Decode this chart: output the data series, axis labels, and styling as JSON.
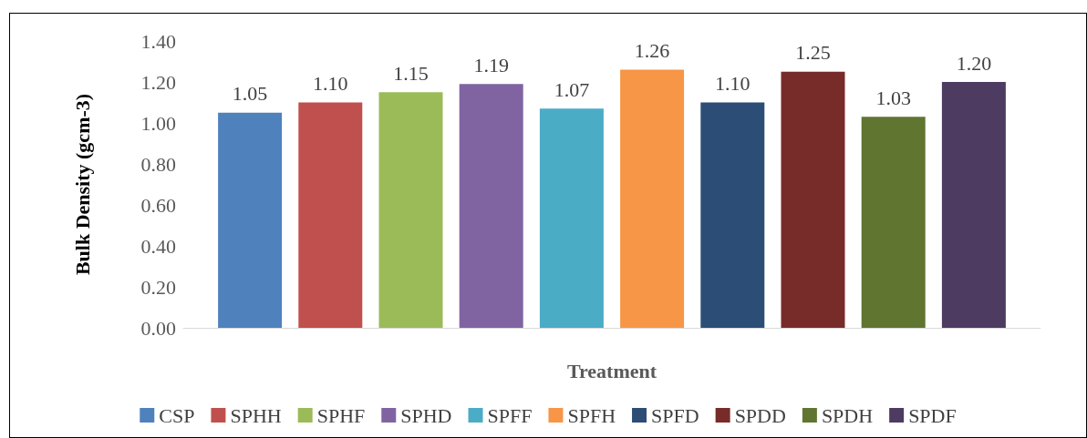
{
  "chart_data": {
    "type": "bar",
    "xlabel": "Treatment",
    "ylabel": "Bulk Density (gcm-3)",
    "categories": [
      null
    ],
    "series": [
      {
        "name": "CSP",
        "color": "#4f81bd",
        "values": [
          1.05
        ],
        "value_labels": [
          "1.05"
        ]
      },
      {
        "name": "SPHH",
        "color": "#c0504d",
        "values": [
          1.1
        ],
        "value_labels": [
          "1.10"
        ]
      },
      {
        "name": "SPHF",
        "color": "#9bbb59",
        "values": [
          1.15
        ],
        "value_labels": [
          "1.15"
        ]
      },
      {
        "name": "SPHD",
        "color": "#8064a2",
        "values": [
          1.19
        ],
        "value_labels": [
          "1.19"
        ]
      },
      {
        "name": "SPFF",
        "color": "#4bacc6",
        "values": [
          1.07
        ],
        "value_labels": [
          "1.07"
        ]
      },
      {
        "name": "SPFH",
        "color": "#f79646",
        "values": [
          1.26
        ],
        "value_labels": [
          "1.26"
        ]
      },
      {
        "name": "SPFD",
        "color": "#2c4d75",
        "values": [
          1.1
        ],
        "value_labels": [
          "1.10"
        ]
      },
      {
        "name": "SPDD",
        "color": "#772c2a",
        "values": [
          1.25
        ],
        "value_labels": [
          "1.25"
        ]
      },
      {
        "name": "SPDH",
        "color": "#5f7530",
        "values": [
          1.03
        ],
        "value_labels": [
          "1.03"
        ]
      },
      {
        "name": "SPDF",
        "color": "#4d3b62",
        "values": [
          1.2
        ],
        "value_labels": [
          "1.20"
        ]
      }
    ],
    "ylim": [
      0,
      1.4
    ],
    "yticks": [
      {
        "value": 0,
        "label": "0.00"
      },
      {
        "value": 0.2,
        "label": "0.20"
      },
      {
        "value": 0.4,
        "label": "0.40"
      },
      {
        "value": 0.6,
        "label": "0.60"
      },
      {
        "value": 0.8,
        "label": "0.80"
      },
      {
        "value": 1.0,
        "label": "1.00"
      },
      {
        "value": 1.2,
        "label": "1.20"
      },
      {
        "value": 1.4,
        "label": "1.40"
      }
    ],
    "grid": false,
    "legend": "bottom"
  }
}
